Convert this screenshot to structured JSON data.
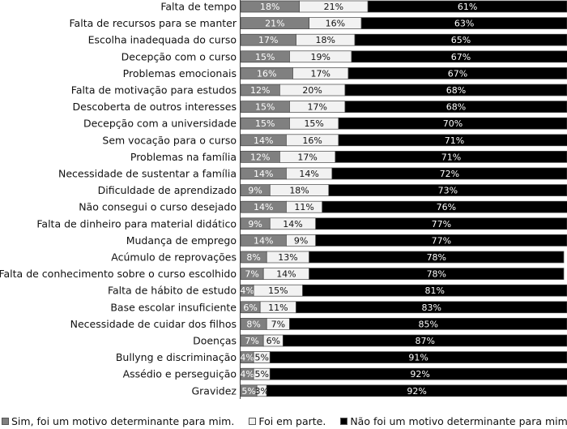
{
  "chart_data": {
    "type": "bar",
    "orientation": "horizontal",
    "stacked": true,
    "value_suffix": "%",
    "categories": [
      "Falta de tempo",
      "Falta de recursos para se manter",
      "Escolha inadequada do curso",
      "Decepção com o curso",
      "Problemas emocionais",
      "Falta de motivação para estudos",
      "Descoberta de outros interesses",
      "Decepção com a universidade",
      "Sem vocação para o curso",
      "Problemas na família",
      "Necessidade de sustentar a família",
      "Dificuldade de aprendizado",
      "Não consegui o curso desejado",
      "Falta de dinheiro para material didático",
      "Mudança de emprego",
      "Acúmulo de reprovações",
      "Falta de conhecimento sobre o curso escolhido",
      "Falta de hábito de estudo",
      "Base escolar insuficiente",
      "Necessidade de cuidar dos filhos",
      "Doenças",
      "Bullyng e discriminação",
      "Assédio e perseguição",
      "Gravidez"
    ],
    "series": [
      {
        "name": "Sim, foi um motivo determinante para mim.",
        "color": "#808080",
        "text_color": "#ffffff",
        "values": [
          18,
          21,
          17,
          15,
          16,
          12,
          15,
          15,
          14,
          12,
          14,
          9,
          14,
          9,
          14,
          8,
          7,
          4,
          6,
          8,
          7,
          4,
          4,
          5
        ]
      },
      {
        "name": "Foi em parte.",
        "color": "#f2f2f2",
        "text_color": "#111111",
        "values": [
          21,
          16,
          18,
          19,
          17,
          20,
          17,
          15,
          16,
          17,
          14,
          18,
          11,
          14,
          9,
          13,
          14,
          15,
          11,
          7,
          6,
          5,
          5,
          3
        ]
      },
      {
        "name": "Não foi um motivo determinante para mim.",
        "color": "#000000",
        "text_color": "#ffffff",
        "values": [
          61,
          63,
          65,
          67,
          67,
          68,
          68,
          70,
          71,
          71,
          72,
          73,
          76,
          77,
          77,
          78,
          78,
          81,
          83,
          85,
          87,
          91,
          92,
          92
        ]
      }
    ],
    "xlim": [
      0,
      100
    ],
    "legend_position": "bottom",
    "grid": false
  }
}
